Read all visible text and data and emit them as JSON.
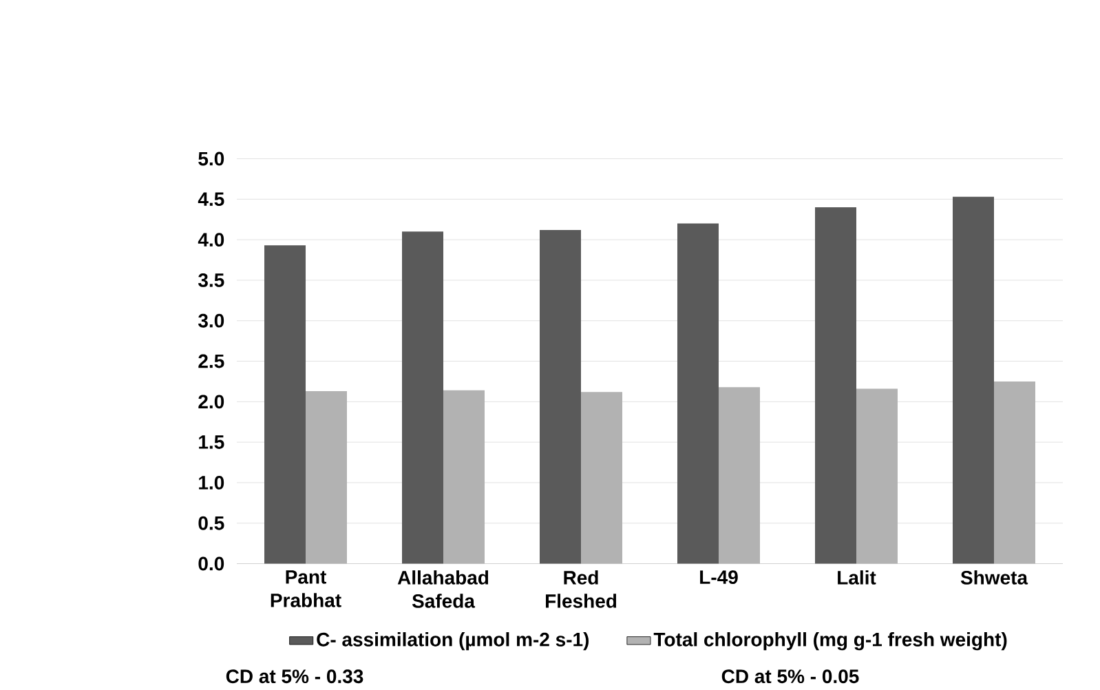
{
  "chart_data": {
    "type": "bar",
    "categories": [
      "Pant Prabhat",
      "Allahabad Safeda",
      "Red Fleshed",
      "L-49",
      "Lalit",
      "Shweta"
    ],
    "series": [
      {
        "name": "C- assimilation (µmol m-2 s-1)",
        "color": "#5a5a5a",
        "values": [
          3.93,
          4.1,
          4.12,
          4.2,
          4.4,
          4.53
        ]
      },
      {
        "name": "Total chlorophyll (mg g-1 fresh weight)",
        "color": "#b2b2b2",
        "values": [
          2.13,
          2.14,
          2.12,
          2.18,
          2.16,
          2.25
        ]
      }
    ],
    "ylim": [
      0,
      5
    ],
    "yticks": [
      {
        "value": 0,
        "label": "0.0"
      },
      {
        "value": 0.5,
        "label": "0.5"
      },
      {
        "value": 1,
        "label": "1.0"
      },
      {
        "value": 1.5,
        "label": "1.5"
      },
      {
        "value": 2,
        "label": "2.0"
      },
      {
        "value": 2.5,
        "label": "2.5"
      },
      {
        "value": 3,
        "label": "3.0"
      },
      {
        "value": 3.5,
        "label": "3.5"
      },
      {
        "value": 4,
        "label": "4.0"
      },
      {
        "value": 4.5,
        "label": "4.5"
      },
      {
        "value": 5,
        "label": "5.0"
      }
    ],
    "grid": "y",
    "legend": "bottom",
    "annotations": [
      "CD at 5% - 0.33",
      "CD at 5% - 0.05"
    ]
  }
}
